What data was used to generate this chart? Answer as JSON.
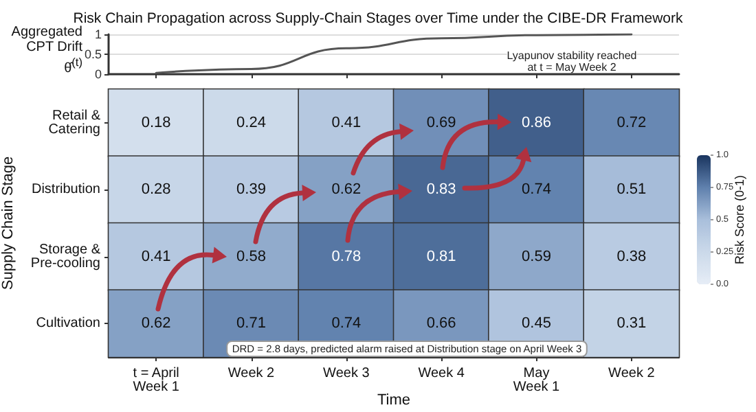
{
  "chart_data": [
    {
      "type": "line",
      "title": "Risk Chain Propagation across Supply-Chain Stages over Time under the CIBE-DR Framework",
      "ylabel": "Aggregated\nCPT Drift\nθ̂$^{(t)}$",
      "categories": [
        null,
        null,
        null,
        null,
        null,
        null
      ],
      "series": [
        {
          "color": "#555555",
          "values": [
            0.03,
            0.13,
            0.65,
            0.9,
            0.98,
            1.0
          ]
        }
      ],
      "ylim": [
        0,
        1
      ],
      "yticks": [
        0,
        0.5,
        1
      ],
      "grid": "y",
      "marker": "none",
      "line_style": "solid",
      "tick_labels": "y",
      "annotations": [
        "Lyapunov stability reached\nat t = May Week 2"
      ]
    },
    {
      "type": "heatmap",
      "xlabel": "Time",
      "ylabel": "Supply Chain Stage",
      "clabel": "Risk Score (0-1)",
      "categories": [
        "t = April\nWeek 1",
        "Week 2",
        "Week 3",
        "Week 4",
        "May\nWeek 1",
        "Week 2"
      ],
      "y_categories": [
        "Retail &\nCatering",
        "Distribution",
        "Storage &\nPre-cooling",
        "Cultivation"
      ],
      "cells": [
        [
          0.18,
          0.24,
          0.41,
          0.69,
          0.86,
          0.72
        ],
        [
          0.28,
          0.39,
          0.62,
          0.83,
          0.74,
          0.51
        ],
        [
          0.41,
          0.58,
          0.78,
          0.81,
          0.59,
          0.38
        ],
        [
          0.62,
          0.71,
          0.74,
          0.66,
          0.45,
          0.31
        ]
      ],
      "clim": [
        0,
        1
      ],
      "cticks": [
        {
          "value": 0,
          "label": "0.0"
        },
        0.25,
        0.5,
        0.75,
        {
          "value": 1,
          "label": "1.0"
        }
      ],
      "data_labels": true,
      "annotations": [
        "DRD = 2.8 days, predicted alarm raised at Distribution stage on April Week 3"
      ]
    }
  ]
}
